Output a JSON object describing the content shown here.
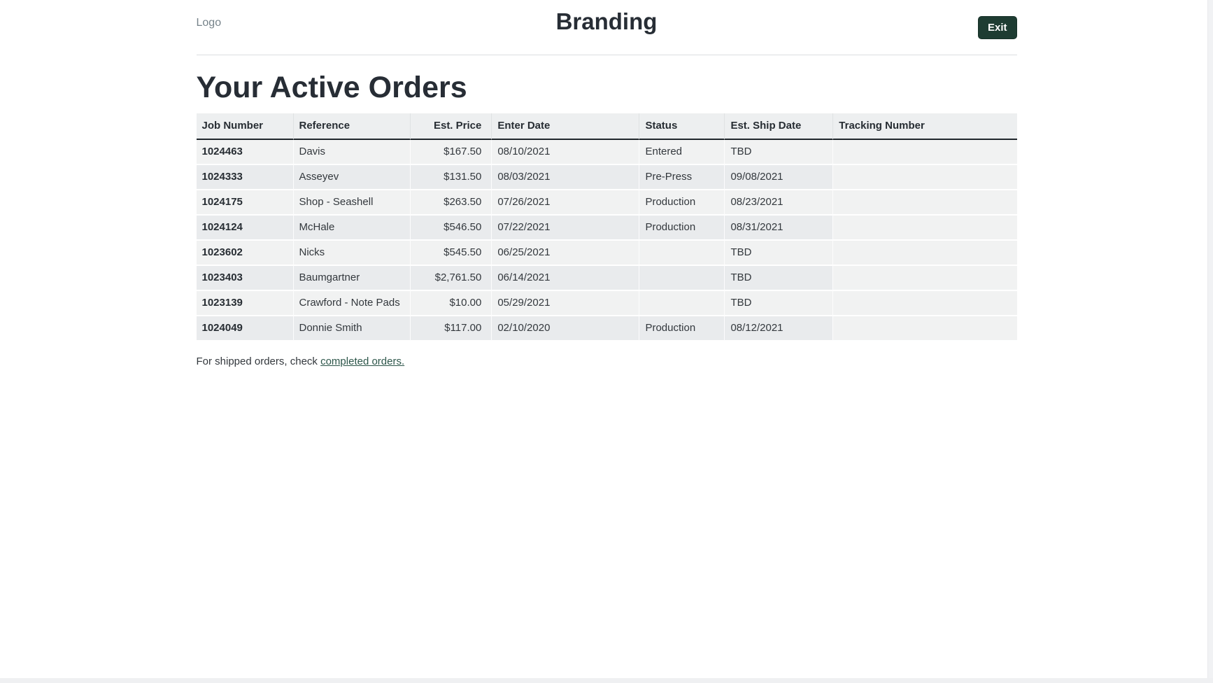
{
  "nav": {
    "logo_label": "Logo",
    "title": "Branding",
    "exit_label": "Exit"
  },
  "orders": {
    "heading": "Your Active Orders",
    "columns": [
      "Job Number",
      "Reference",
      "Est. Price",
      "Enter Date",
      "Status",
      "Est. Ship Date",
      "Tracking Number"
    ],
    "rows": [
      {
        "job_number": "1024463",
        "reference": "Davis",
        "est_price": "$167.50",
        "enter_date": "08/10/2021",
        "status": "Entered",
        "est_ship_date": "TBD",
        "tracking_number": ""
      },
      {
        "job_number": "1024333",
        "reference": "Asseyev",
        "est_price": "$131.50",
        "enter_date": "08/03/2021",
        "status": "Pre-Press",
        "est_ship_date": "09/08/2021",
        "tracking_number": ""
      },
      {
        "job_number": "1024175",
        "reference": "Shop - Seashell",
        "est_price": "$263.50",
        "enter_date": "07/26/2021",
        "status": "Production",
        "est_ship_date": "08/23/2021",
        "tracking_number": ""
      },
      {
        "job_number": "1024124",
        "reference": "McHale",
        "est_price": "$546.50",
        "enter_date": "07/22/2021",
        "status": "Production",
        "est_ship_date": "08/31/2021",
        "tracking_number": ""
      },
      {
        "job_number": "1023602",
        "reference": "Nicks",
        "est_price": "$545.50",
        "enter_date": "06/25/2021",
        "status": "",
        "est_ship_date": "TBD",
        "tracking_number": ""
      },
      {
        "job_number": "1023403",
        "reference": "Baumgartner",
        "est_price": "$2,761.50",
        "enter_date": "06/14/2021",
        "status": "",
        "est_ship_date": "TBD",
        "tracking_number": ""
      },
      {
        "job_number": "1023139",
        "reference": "Crawford - Note Pads",
        "est_price": "$10.00",
        "enter_date": "05/29/2021",
        "status": "",
        "est_ship_date": "TBD",
        "tracking_number": ""
      },
      {
        "job_number": "1024049",
        "reference": "Donnie Smith",
        "est_price": "$117.00",
        "enter_date": "02/10/2020",
        "status": "Production",
        "est_ship_date": "08/12/2021",
        "tracking_number": ""
      }
    ],
    "footer_text": "For shipped orders, check ",
    "footer_link": "completed orders."
  },
  "colors": {
    "exit_button_bg": "#1e3c32",
    "link_green": "#2d564a",
    "row_light": "#f1f2f2",
    "row_dark": "#e9ebed",
    "header_bg": "#edeff0",
    "header_border": "#20262c"
  }
}
